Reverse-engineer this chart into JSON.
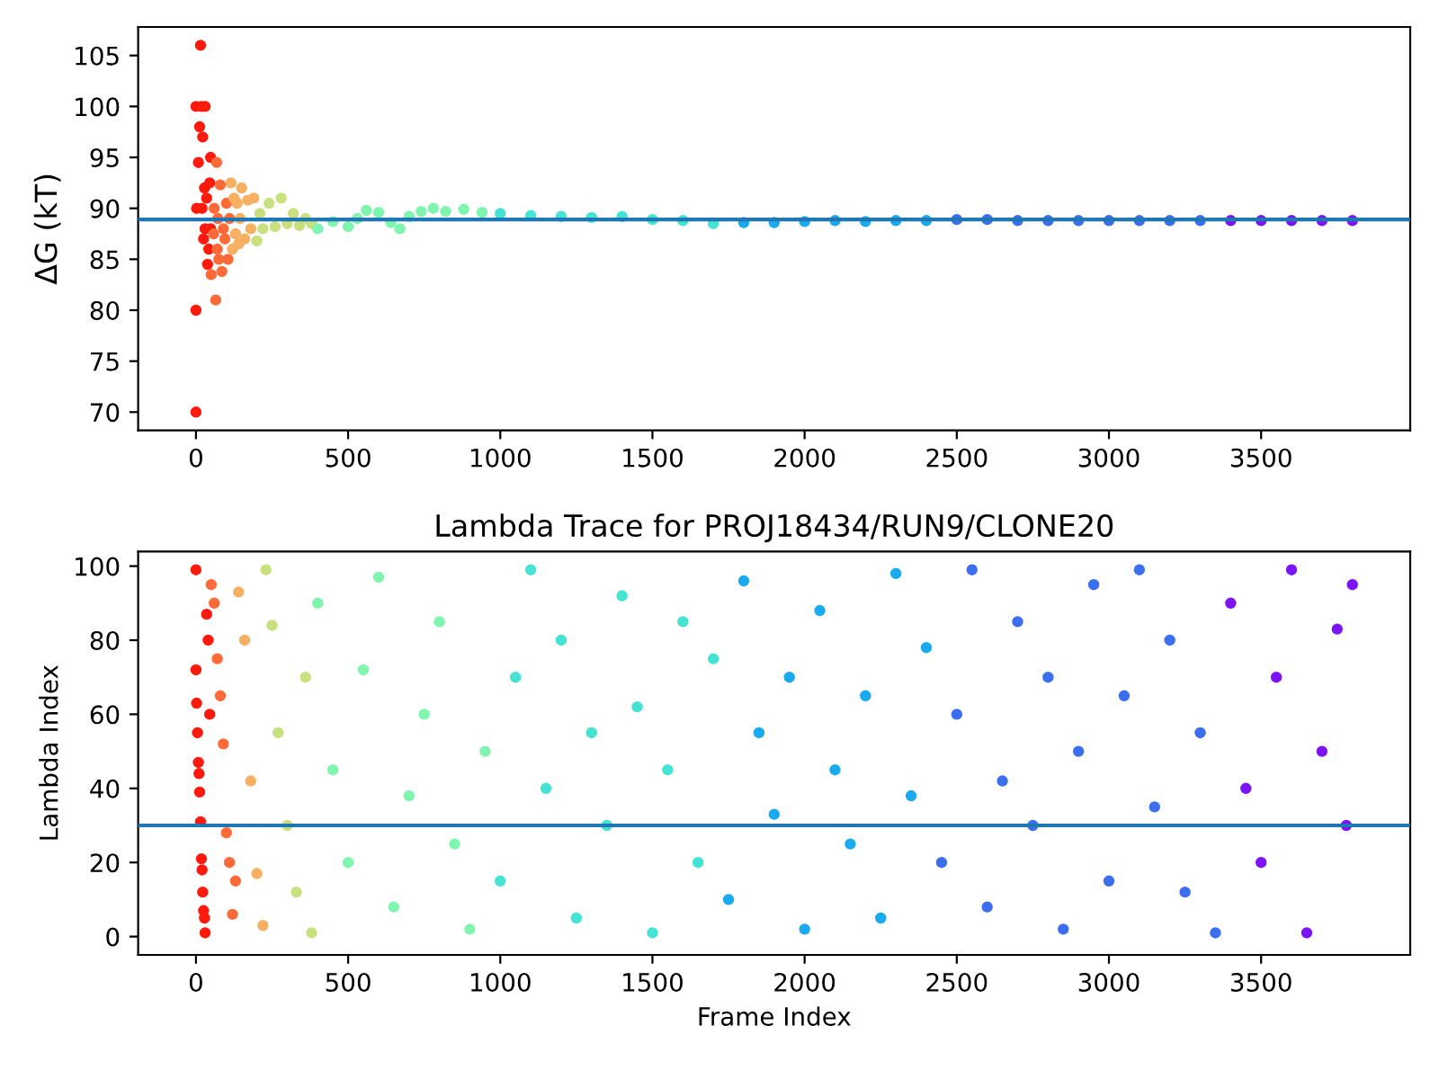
{
  "chart_data": [
    {
      "type": "scatter",
      "ylabel": "ΔG (kT)",
      "marker": "circle",
      "grid": false,
      "xlim": [
        -190,
        3990
      ],
      "xticks": [
        0,
        500,
        1000,
        1500,
        2000,
        2500,
        3000,
        3500
      ],
      "ylim": [
        68.2,
        107.8
      ],
      "yticks": [
        70,
        75,
        80,
        85,
        90,
        95,
        100,
        105
      ],
      "ref_lines": [
        {
          "axis": "y",
          "value": 88.9,
          "color": "#1f77b4"
        }
      ],
      "series": [
        {
          "color": "#ff1a0d",
          "x": [
            0,
            0,
            2,
            0,
            30,
            12,
            15,
            18,
            20,
            22,
            25,
            28,
            30,
            8,
            35,
            38,
            48,
            42,
            45,
            48
          ],
          "values": [
            70,
            80,
            90,
            100,
            100,
            98,
            106,
            100,
            90,
            97,
            87,
            92,
            88,
            94.5,
            91,
            84.5,
            95,
            86,
            92.5,
            88
          ]
        },
        {
          "color": "#ff6a38",
          "x": [
            50,
            68,
            58,
            60,
            65,
            70,
            72,
            75,
            80,
            85,
            90,
            95,
            100,
            105,
            110
          ],
          "values": [
            83.5,
            94.5,
            87.5,
            90,
            81,
            86,
            89,
            85,
            92.3,
            83.8,
            88,
            87,
            90.5,
            85,
            89
          ]
        },
        {
          "color": "#f7b061",
          "x": [
            115,
            120,
            125,
            130,
            135,
            140,
            145,
            150,
            160,
            170,
            180,
            190
          ],
          "values": [
            92.5,
            86,
            91,
            87.5,
            90.5,
            86.5,
            89,
            92,
            87,
            90.8,
            88,
            91
          ]
        },
        {
          "color": "#c8e07e",
          "x": [
            200,
            210,
            220,
            240,
            260,
            280,
            300,
            320,
            340,
            360,
            380
          ],
          "values": [
            86.8,
            89.5,
            88,
            90.5,
            88.2,
            91,
            88.5,
            89.5,
            88.3,
            89,
            88.5
          ]
        },
        {
          "color": "#80f5b0",
          "x": [
            400,
            450,
            500,
            530,
            560,
            600,
            640,
            670,
            700,
            740,
            780,
            820,
            880,
            940
          ],
          "values": [
            88,
            88.7,
            88.2,
            89,
            89.8,
            89.6,
            88.6,
            88,
            89.2,
            89.7,
            90,
            89.7,
            89.9,
            89.6
          ]
        },
        {
          "color": "#45e3d3",
          "x": [
            1000,
            1100,
            1200,
            1300,
            1400,
            1500,
            1600,
            1700
          ],
          "values": [
            89.5,
            89.3,
            89.2,
            89.1,
            89.2,
            88.9,
            88.8,
            88.5
          ]
        },
        {
          "color": "#1aaaf0",
          "x": [
            1800,
            1900,
            2000,
            2100,
            2200,
            2300,
            2400
          ],
          "values": [
            88.6,
            88.6,
            88.7,
            88.8,
            88.7,
            88.8,
            88.8
          ]
        },
        {
          "color": "#3c6ef0",
          "x": [
            2500,
            2600,
            2700,
            2800,
            2900,
            3000,
            3100,
            3200,
            3300
          ],
          "values": [
            88.9,
            88.9,
            88.8,
            88.8,
            88.8,
            88.8,
            88.8,
            88.8,
            88.8
          ]
        },
        {
          "color": "#7d14f7",
          "x": [
            3400,
            3500,
            3600,
            3700,
            3800
          ],
          "values": [
            88.8,
            88.8,
            88.8,
            88.8,
            88.8
          ]
        }
      ]
    },
    {
      "type": "scatter",
      "title": "Lambda Trace for PROJ18434/RUN9/CLONE20",
      "xlabel": "Frame Index",
      "ylabel": "Lambda Index",
      "marker": "circle",
      "grid": false,
      "xlim": [
        -190,
        3990
      ],
      "xticks": [
        0,
        500,
        1000,
        1500,
        2000,
        2500,
        3000,
        3500
      ],
      "ylim": [
        -4.95,
        103.95
      ],
      "yticks": [
        0,
        20,
        40,
        60,
        80,
        100
      ],
      "ref_lines": [
        {
          "axis": "y",
          "value": 30,
          "color": "#1f77b4"
        }
      ],
      "series": [
        {
          "color": "#ff1a0d",
          "x": [
            0,
            0,
            2,
            5,
            8,
            10,
            12,
            15,
            18,
            20,
            22,
            25,
            28,
            30,
            35,
            40,
            45
          ],
          "values": [
            99,
            72,
            63,
            55,
            47,
            44,
            39,
            31,
            21,
            18,
            12,
            7,
            5,
            1,
            87,
            80,
            60
          ]
        },
        {
          "color": "#ff6a38",
          "x": [
            50,
            60,
            70,
            80,
            90,
            100,
            110,
            120,
            130
          ],
          "values": [
            95,
            90,
            75,
            65,
            52,
            28,
            20,
            6,
            15
          ]
        },
        {
          "color": "#f7b061",
          "x": [
            140,
            160,
            180,
            200,
            220
          ],
          "values": [
            93,
            80,
            42,
            17,
            3
          ]
        },
        {
          "color": "#c8e07e",
          "x": [
            230,
            250,
            270,
            300,
            330,
            360,
            380
          ],
          "values": [
            99,
            84,
            55,
            30,
            12,
            70,
            1
          ]
        },
        {
          "color": "#80f5b0",
          "x": [
            400,
            450,
            500,
            550,
            600,
            650,
            700,
            750,
            800,
            850,
            900,
            950
          ],
          "values": [
            90,
            45,
            20,
            72,
            97,
            8,
            38,
            60,
            85,
            25,
            2,
            50
          ]
        },
        {
          "color": "#45e3d3",
          "x": [
            1000,
            1050,
            1100,
            1150,
            1200,
            1250,
            1300,
            1350,
            1400,
            1450,
            1500,
            1550,
            1600,
            1650,
            1700
          ],
          "values": [
            15,
            70,
            99,
            40,
            80,
            5,
            55,
            30,
            92,
            62,
            1,
            45,
            85,
            20,
            75
          ]
        },
        {
          "color": "#1aaaf0",
          "x": [
            1750,
            1800,
            1850,
            1900,
            1950,
            2000,
            2050,
            2100,
            2150,
            2200,
            2250,
            2300,
            2350,
            2400
          ],
          "values": [
            10,
            96,
            55,
            33,
            70,
            2,
            88,
            45,
            25,
            65,
            5,
            98,
            38,
            78
          ]
        },
        {
          "color": "#3c6ef0",
          "x": [
            2450,
            2500,
            2550,
            2600,
            2650,
            2700,
            2750,
            2800,
            2850,
            2900,
            2950,
            3000,
            3050,
            3100,
            3150,
            3200,
            3250,
            3300,
            3350
          ],
          "values": [
            20,
            60,
            99,
            8,
            42,
            85,
            30,
            70,
            2,
            50,
            95,
            15,
            65,
            99,
            35,
            80,
            12,
            55,
            1
          ]
        },
        {
          "color": "#7d14f7",
          "x": [
            3400,
            3450,
            3500,
            3550,
            3600,
            3650,
            3700,
            3750,
            3780,
            3800
          ],
          "values": [
            90,
            40,
            20,
            70,
            99,
            1,
            50,
            83,
            30,
            95
          ]
        }
      ]
    }
  ]
}
